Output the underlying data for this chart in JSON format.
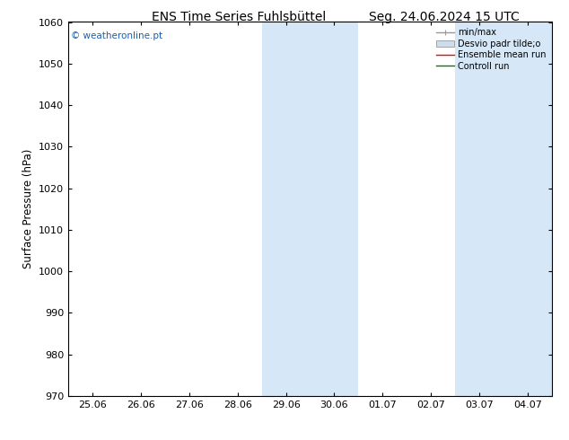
{
  "title_left": "ENS Time Series Fuhlsbüttel",
  "title_right": "Seg. 24.06.2024 15 UTC",
  "ylabel": "Surface Pressure (hPa)",
  "watermark": "© weatheronline.pt",
  "ylim": [
    970,
    1060
  ],
  "yticks": [
    970,
    980,
    990,
    1000,
    1010,
    1020,
    1030,
    1040,
    1050,
    1060
  ],
  "xtick_labels": [
    "25.06",
    "26.06",
    "27.06",
    "28.06",
    "29.06",
    "30.06",
    "01.07",
    "02.07",
    "03.07",
    "04.07"
  ],
  "shaded_columns": [
    4,
    5,
    8,
    9
  ],
  "shade_color": "#d6e8f7",
  "background_color": "#ffffff",
  "plot_bg_color": "#ffffff",
  "legend_items": [
    {
      "label": "min/max",
      "color": "#999999",
      "lw": 1.0
    },
    {
      "label": "Desvio padr tilde;o",
      "color": "#ccddee"
    },
    {
      "label": "Ensemble mean run",
      "color": "red",
      "lw": 1.0
    },
    {
      "label": "Controll run",
      "color": "green",
      "lw": 1.0
    }
  ],
  "watermark_color": "#1a5fb0",
  "title_fontsize": 10,
  "tick_fontsize": 8,
  "ylabel_fontsize": 8.5
}
